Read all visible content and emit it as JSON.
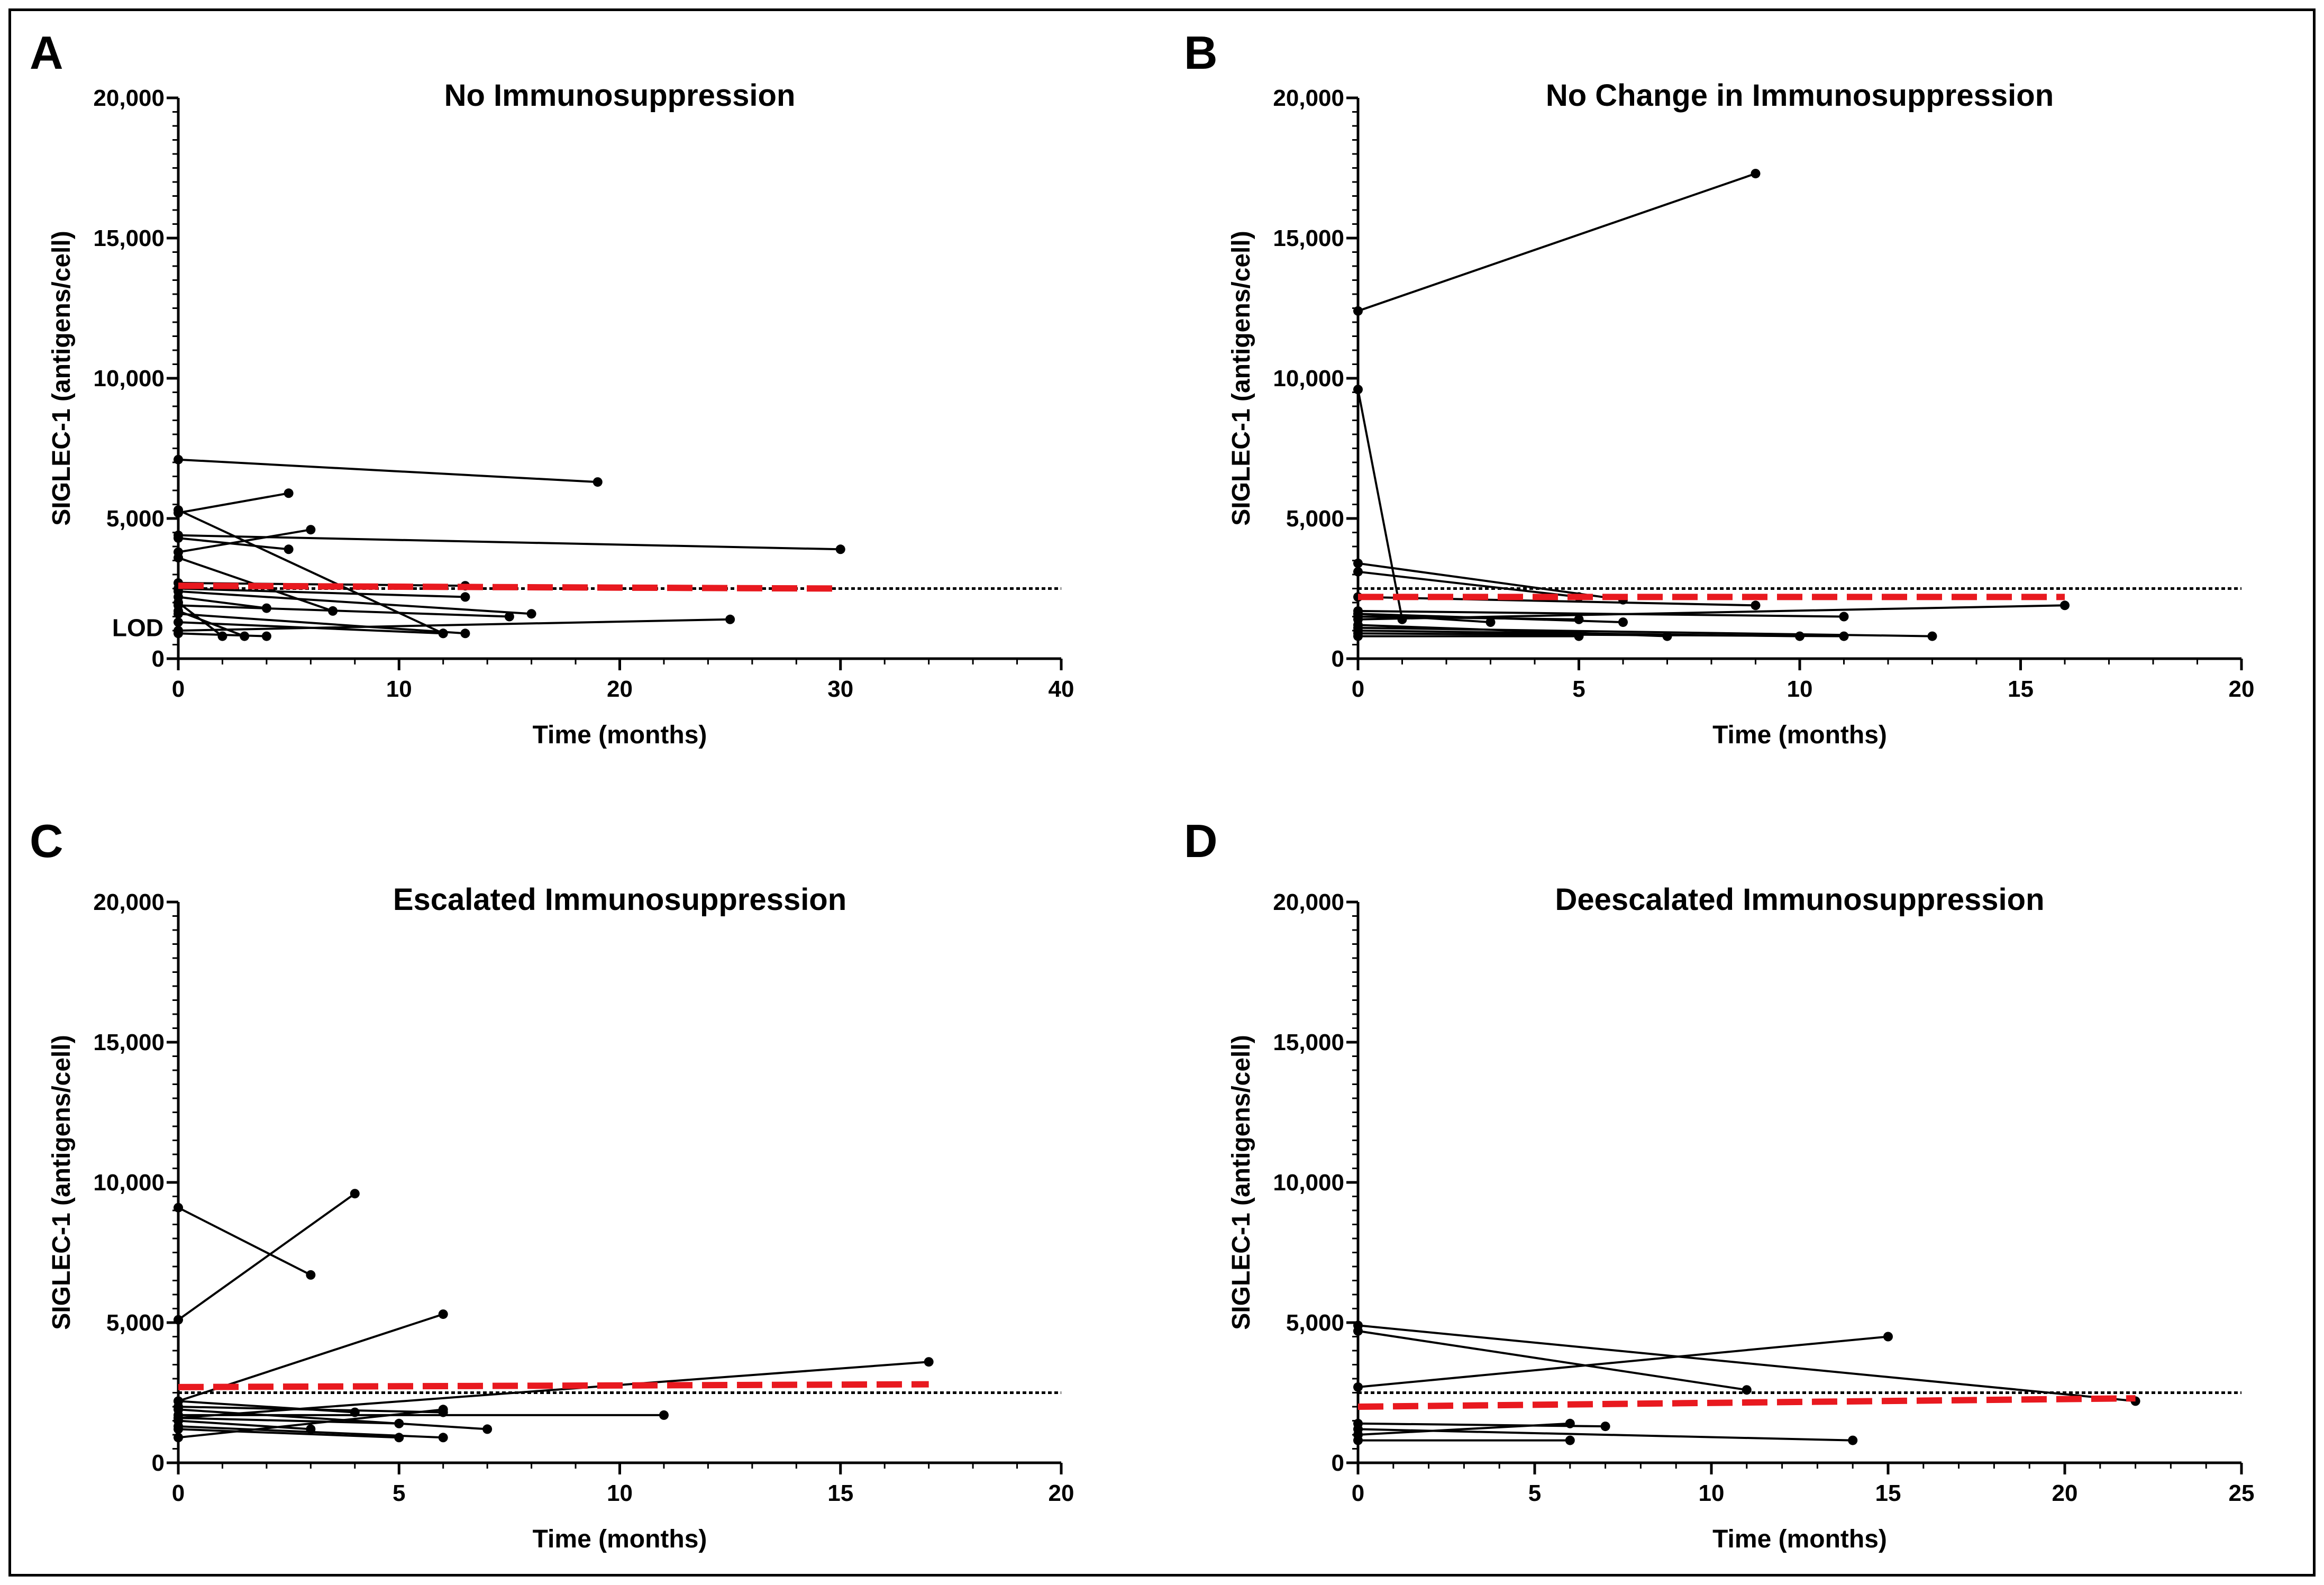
{
  "colors": {
    "frame": "#000000",
    "series_line": "#000000",
    "trend_line": "#e8191f",
    "reference_line": "#000000"
  },
  "chart_data": [
    {
      "panel": "A",
      "type": "line",
      "title": "No Immunosuppression",
      "xlabel": "Time  (months)",
      "ylabel": "SIGLEC-1 (antigens/cell)",
      "xlim": [
        0,
        40
      ],
      "ylim": [
        0,
        20000
      ],
      "xticks": [
        0,
        10,
        20,
        30,
        40
      ],
      "xtick_labels": [
        "0",
        "10",
        "20",
        "30",
        "40"
      ],
      "yticks": [
        0,
        5000,
        10000,
        15000,
        20000
      ],
      "ytick_labels": [
        "0",
        "5,000",
        "10,000",
        "15,000",
        "20,000"
      ],
      "reference_line": {
        "y": 2500
      },
      "lod_label": "LOD",
      "trend": {
        "x": [
          0,
          30
        ],
        "y": [
          2600,
          2500
        ]
      },
      "series": [
        {
          "x": [
            0,
            19
          ],
          "y": [
            7100,
            6300
          ]
        },
        {
          "x": [
            0,
            5
          ],
          "y": [
            5200,
            5900
          ]
        },
        {
          "x": [
            0,
            12
          ],
          "y": [
            5300,
            900
          ]
        },
        {
          "x": [
            0,
            30
          ],
          "y": [
            4400,
            3900
          ]
        },
        {
          "x": [
            0,
            6
          ],
          "y": [
            3800,
            4600
          ]
        },
        {
          "x": [
            0,
            5
          ],
          "y": [
            4300,
            3900
          ]
        },
        {
          "x": [
            0,
            7
          ],
          "y": [
            3600,
            1700
          ]
        },
        {
          "x": [
            0,
            13
          ],
          "y": [
            2700,
            2600
          ]
        },
        {
          "x": [
            0,
            13
          ],
          "y": [
            2500,
            2200
          ]
        },
        {
          "x": [
            0,
            16
          ],
          "y": [
            2400,
            1600
          ]
        },
        {
          "x": [
            0,
            4
          ],
          "y": [
            2200,
            1800
          ]
        },
        {
          "x": [
            0,
            15
          ],
          "y": [
            1900,
            1500
          ]
        },
        {
          "x": [
            0,
            25
          ],
          "y": [
            1000,
            1400
          ]
        },
        {
          "x": [
            0,
            12
          ],
          "y": [
            1300,
            900
          ]
        },
        {
          "x": [
            0,
            13
          ],
          "y": [
            1600,
            900
          ]
        },
        {
          "x": [
            0,
            3
          ],
          "y": [
            1700,
            800
          ]
        },
        {
          "x": [
            0,
            2
          ],
          "y": [
            2000,
            800
          ]
        },
        {
          "x": [
            0,
            4
          ],
          "y": [
            900,
            800
          ]
        }
      ]
    },
    {
      "panel": "B",
      "type": "line",
      "title": "No Change in Immunosuppression",
      "xlabel": "Time  (months)",
      "ylabel": "SIGLEC-1 (antigens/cell)",
      "xlim": [
        0,
        20
      ],
      "ylim": [
        0,
        20000
      ],
      "xticks": [
        0,
        5,
        10,
        15,
        20
      ],
      "xtick_labels": [
        "0",
        "5",
        "10",
        "15",
        "20"
      ],
      "yticks": [
        0,
        5000,
        10000,
        15000,
        20000
      ],
      "ytick_labels": [
        "0",
        "5,000",
        "10,000",
        "15,000",
        "20,000"
      ],
      "reference_line": {
        "y": 2500
      },
      "trend": {
        "x": [
          0,
          16
        ],
        "y": [
          2200,
          2200
        ]
      },
      "series": [
        {
          "x": [
            0,
            9
          ],
          "y": [
            12400,
            17300
          ]
        },
        {
          "x": [
            0,
            1
          ],
          "y": [
            9600,
            1400
          ]
        },
        {
          "x": [
            0,
            6
          ],
          "y": [
            3400,
            2100
          ]
        },
        {
          "x": [
            0,
            5
          ],
          "y": [
            3100,
            2200
          ]
        },
        {
          "x": [
            0,
            9
          ],
          "y": [
            2200,
            1900
          ]
        },
        {
          "x": [
            0,
            16
          ],
          "y": [
            1400,
            1900
          ]
        },
        {
          "x": [
            0,
            11
          ],
          "y": [
            1700,
            1500
          ]
        },
        {
          "x": [
            0,
            6
          ],
          "y": [
            1600,
            1300
          ]
        },
        {
          "x": [
            0,
            5
          ],
          "y": [
            1500,
            1400
          ]
        },
        {
          "x": [
            0,
            3
          ],
          "y": [
            1600,
            1300
          ]
        },
        {
          "x": [
            0,
            7
          ],
          "y": [
            1200,
            800
          ]
        },
        {
          "x": [
            0,
            10
          ],
          "y": [
            1000,
            800
          ]
        },
        {
          "x": [
            0,
            5
          ],
          "y": [
            800,
            800
          ]
        },
        {
          "x": [
            0,
            13
          ],
          "y": [
            1100,
            800
          ]
        },
        {
          "x": [
            0,
            11
          ],
          "y": [
            900,
            800
          ]
        }
      ]
    },
    {
      "panel": "C",
      "type": "line",
      "title": "Escalated Immunosuppression",
      "xlabel": "Time  (months)",
      "ylabel": "SIGLEC-1 (antigens/cell)",
      "xlim": [
        0,
        20
      ],
      "ylim": [
        0,
        20000
      ],
      "xticks": [
        0,
        5,
        10,
        15,
        20
      ],
      "xtick_labels": [
        "0",
        "5",
        "10",
        "15",
        "20"
      ],
      "yticks": [
        0,
        5000,
        10000,
        15000,
        20000
      ],
      "ytick_labels": [
        "0",
        "5,000",
        "10,000",
        "15,000",
        "20,000"
      ],
      "reference_line": {
        "y": 2500
      },
      "trend": {
        "x": [
          0,
          17
        ],
        "y": [
          2700,
          2800
        ]
      },
      "series": [
        {
          "x": [
            0,
            3
          ],
          "y": [
            9100,
            6700
          ]
        },
        {
          "x": [
            0,
            4
          ],
          "y": [
            5100,
            9600
          ]
        },
        {
          "x": [
            0,
            6
          ],
          "y": [
            2200,
            5300
          ]
        },
        {
          "x": [
            0,
            17
          ],
          "y": [
            1600,
            3600
          ]
        },
        {
          "x": [
            0,
            4
          ],
          "y": [
            2200,
            1800
          ]
        },
        {
          "x": [
            0,
            6
          ],
          "y": [
            2000,
            1800
          ]
        },
        {
          "x": [
            0,
            11
          ],
          "y": [
            1700,
            1700
          ]
        },
        {
          "x": [
            0,
            7
          ],
          "y": [
            1900,
            1200
          ]
        },
        {
          "x": [
            0,
            5
          ],
          "y": [
            1600,
            1400
          ]
        },
        {
          "x": [
            0,
            3
          ],
          "y": [
            1500,
            1200
          ]
        },
        {
          "x": [
            0,
            6
          ],
          "y": [
            1300,
            900
          ]
        },
        {
          "x": [
            0,
            5
          ],
          "y": [
            1200,
            900
          ]
        },
        {
          "x": [
            0,
            6
          ],
          "y": [
            900,
            1900
          ]
        }
      ]
    },
    {
      "panel": "D",
      "type": "line",
      "title": "Deescalated Immunosuppression",
      "xlabel": "Time  (months)",
      "ylabel": "SIGLEC-1 (antigens/cell)",
      "xlim": [
        0,
        25
      ],
      "ylim": [
        0,
        20000
      ],
      "xticks": [
        0,
        5,
        10,
        15,
        20,
        25
      ],
      "xtick_labels": [
        "0",
        "5",
        "10",
        "15",
        "20",
        "25"
      ],
      "yticks": [
        0,
        5000,
        10000,
        15000,
        20000
      ],
      "ytick_labels": [
        "0",
        "5,000",
        "10,000",
        "15,000",
        "20,000"
      ],
      "reference_line": {
        "y": 2500
      },
      "trend": {
        "x": [
          0,
          22
        ],
        "y": [
          2000,
          2300
        ]
      },
      "series": [
        {
          "x": [
            0,
            22
          ],
          "y": [
            4900,
            2200
          ]
        },
        {
          "x": [
            0,
            11
          ],
          "y": [
            4700,
            2600
          ]
        },
        {
          "x": [
            0,
            15
          ],
          "y": [
            2700,
            4500
          ]
        },
        {
          "x": [
            0,
            7
          ],
          "y": [
            1400,
            1300
          ]
        },
        {
          "x": [
            0,
            6
          ],
          "y": [
            1000,
            1400
          ]
        },
        {
          "x": [
            0,
            14
          ],
          "y": [
            1200,
            800
          ]
        },
        {
          "x": [
            0,
            6
          ],
          "y": [
            800,
            800
          ]
        }
      ]
    }
  ]
}
